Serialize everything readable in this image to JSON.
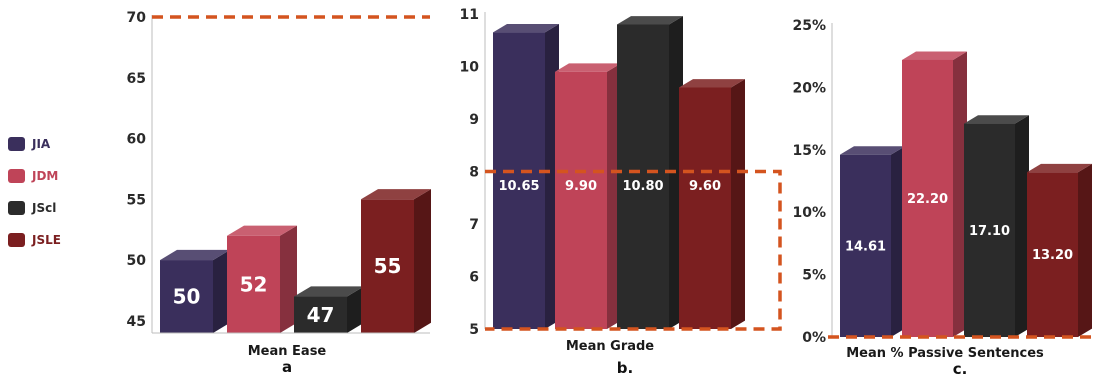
{
  "series_colors": {
    "JIA": "#3a2f5c",
    "JDM": "#bf4458",
    "JScl": "#2b2b2b",
    "JSLE": "#7b1f20"
  },
  "accent_color": "#d4541f",
  "legend": [
    {
      "name": "JIA",
      "color": "#3a2f5c",
      "text_color": "#3a2f5c"
    },
    {
      "name": "JDM",
      "color": "#bf4458",
      "text_color": "#bf4458"
    },
    {
      "name": "JScl",
      "color": "#2b2b2b",
      "text_color": "#2b2b2b"
    },
    {
      "name": "JSLE",
      "color": "#7b1f20",
      "text_color": "#7b1f20"
    }
  ],
  "chart_data": [
    {
      "type": "bar",
      "panel_label": "a",
      "xlabel": "Mean Ease",
      "categories": [
        "JIA",
        "JDM",
        "JScl",
        "JSLE"
      ],
      "values": [
        50,
        52,
        47,
        55
      ],
      "value_labels": [
        "50",
        "52",
        "47",
        "55"
      ],
      "ylim": [
        44,
        70
      ],
      "yticks": [
        45,
        50,
        55,
        60,
        65,
        70
      ],
      "ytick_labels": [
        "45",
        "50",
        "55",
        "60",
        "65",
        "70"
      ],
      "grid": false,
      "reference_line": 70
    },
    {
      "type": "bar",
      "panel_label": "b.",
      "xlabel": "Mean Grade",
      "categories": [
        "JIA",
        "JDM",
        "JScl",
        "JSLE"
      ],
      "values": [
        10.65,
        9.9,
        10.8,
        9.6
      ],
      "value_labels": [
        "10.65",
        "9.90",
        "10.80",
        "9.60"
      ],
      "ylim": [
        5,
        11
      ],
      "yticks": [
        5,
        6,
        7,
        8,
        9,
        10,
        11
      ],
      "ytick_labels": [
        "5",
        "6",
        "7",
        "8",
        "9",
        "10",
        "11"
      ],
      "grid": false,
      "highlight_range": [
        5,
        8
      ]
    },
    {
      "type": "bar",
      "panel_label": "c.",
      "xlabel": "Mean % Passive Sentences",
      "categories": [
        "JIA",
        "JDM",
        "JScl",
        "JSLE"
      ],
      "values": [
        14.61,
        22.2,
        17.1,
        13.2
      ],
      "value_labels": [
        "14.61",
        "22.20",
        "17.10",
        "13.20"
      ],
      "ylim": [
        0,
        25
      ],
      "yticks": [
        0,
        5,
        10,
        15,
        20,
        25
      ],
      "ytick_labels": [
        "0%",
        "5%",
        "10%",
        "15%",
        "20%",
        "25%"
      ],
      "grid": false,
      "reference_line": 0
    }
  ]
}
